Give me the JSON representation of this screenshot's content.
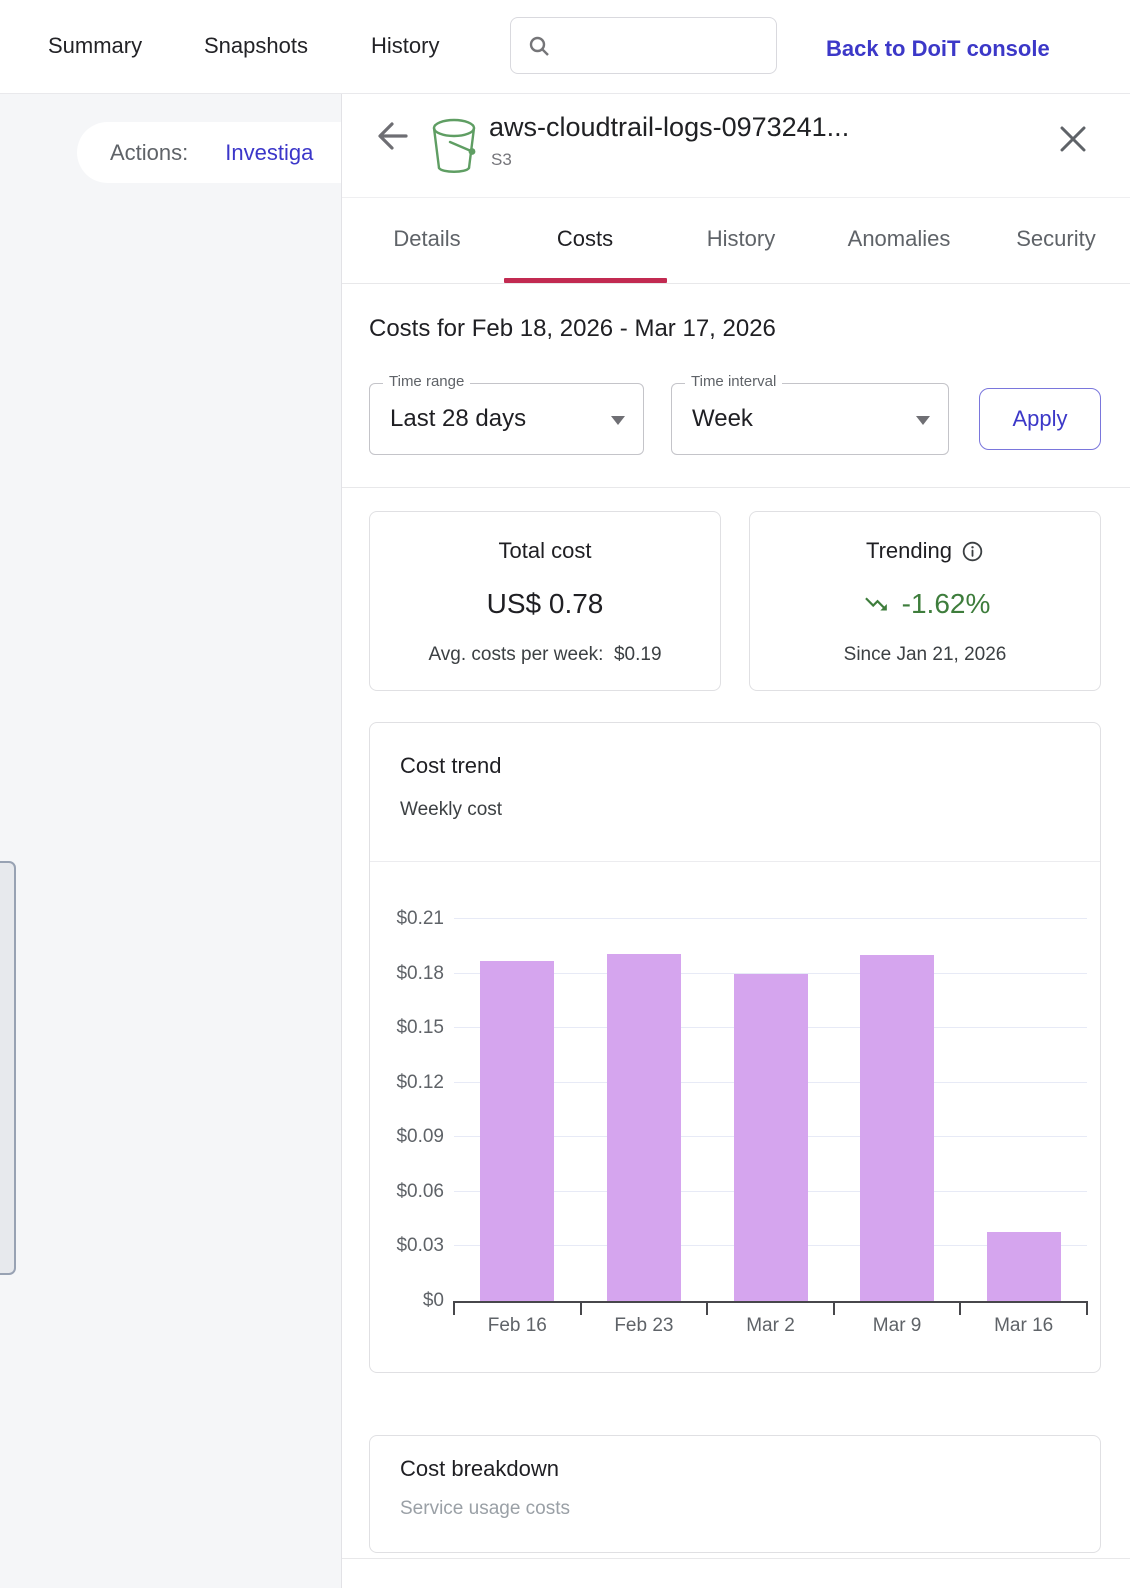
{
  "topbar": {
    "nav": [
      {
        "label": "Summary"
      },
      {
        "label": "Snapshots"
      },
      {
        "label": "History"
      }
    ],
    "search_placeholder": "",
    "back_link": "Back to DoiT console"
  },
  "left_panel": {
    "actions_label": "Actions:",
    "actions_link": "Investiga"
  },
  "drawer": {
    "title": "aws-cloudtrail-logs-0973241...",
    "subtitle": "S3",
    "tabs": [
      {
        "label": "Details"
      },
      {
        "label": "Costs"
      },
      {
        "label": "History"
      },
      {
        "label": "Anomalies"
      },
      {
        "label": "Security"
      }
    ],
    "costs": {
      "heading": "Costs for Feb 18, 2026 - Mar 17, 2026",
      "time_range_label": "Time range",
      "time_range_value": "Last 28 days",
      "time_interval_label": "Time interval",
      "time_interval_value": "Week",
      "apply_label": "Apply",
      "total_card": {
        "title": "Total cost",
        "value": "US$ 0.78",
        "subtext": "Avg. costs per week:  $0.19"
      },
      "trending_card": {
        "title": "Trending",
        "value": "-1.62%",
        "subtext": "Since Jan 21, 2026",
        "trend_color": "#3e7d3c",
        "direction": "down"
      },
      "breakdown": {
        "title": "Cost breakdown",
        "subtitle": "Service usage costs"
      }
    }
  },
  "chart_data": {
    "type": "bar",
    "title": "Cost trend",
    "subtitle": "Weekly cost",
    "categories": [
      "Feb 16",
      "Feb 23",
      "Mar 2",
      "Mar 9",
      "Mar 16"
    ],
    "values": [
      0.187,
      0.191,
      0.18,
      0.19,
      0.038
    ],
    "yticks": [
      0,
      0.03,
      0.06,
      0.09,
      0.12,
      0.15,
      0.18,
      0.21
    ],
    "ytick_labels": [
      "$0",
      "$0.03",
      "$0.06",
      "$0.09",
      "$0.12",
      "$0.15",
      "$0.18",
      "$0.21"
    ],
    "ylim": [
      0,
      0.21
    ],
    "xlabel": "",
    "ylabel": "",
    "bar_color": "#d5a5ee",
    "grid": true,
    "legend": "none"
  },
  "colors": {
    "accent_blue": "#3c38c8",
    "tab_underline": "#c22a51",
    "bar_purple": "#d5a5ee",
    "trend_green": "#3e7d3c",
    "left_bg": "#f5f6f8"
  }
}
